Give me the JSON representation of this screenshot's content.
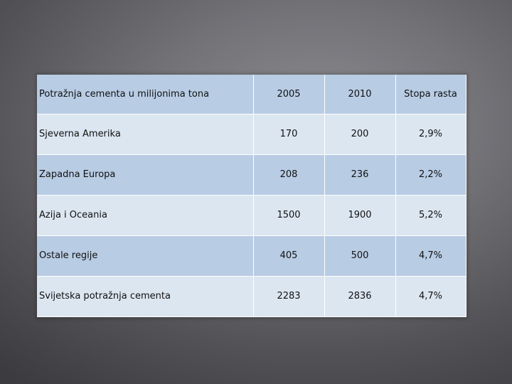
{
  "table": {
    "header": {
      "label": "Potražnja cementa u milijonima tona",
      "col_2005": "2005",
      "col_2010": "2010",
      "col_growth": "Stopa rasta"
    },
    "rows": [
      {
        "region": "Sjeverna Amerika",
        "v2005": "170",
        "v2010": "200",
        "growth": "2,9%"
      },
      {
        "region": "Zapadna Europa",
        "v2005": "208",
        "v2010": "236",
        "growth": "2,2%"
      },
      {
        "region": "Azija i Oceania",
        "v2005": "1500",
        "v2010": "1900",
        "growth": "5,2%"
      },
      {
        "region": "Ostale regije",
        "v2005": "405",
        "v2010": "500",
        "growth": "4,7%"
      },
      {
        "region": "Svijetska potražnja cementa",
        "v2005": "2283",
        "v2010": "2836",
        "growth": "4,7%"
      }
    ]
  }
}
